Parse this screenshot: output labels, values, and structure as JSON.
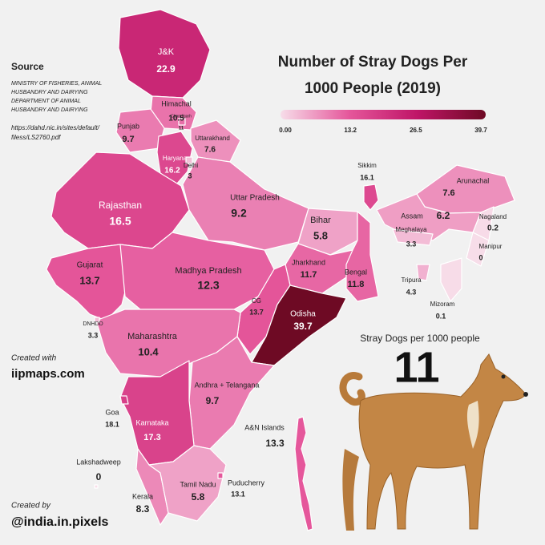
{
  "title": [
    "Number of Stray Dogs Per",
    "1000 People (2019)"
  ],
  "color_scale": {
    "min": 0,
    "max": 39.7,
    "ticks": [
      {
        "value": 0,
        "label": "0.00"
      },
      13.2,
      26.5,
      39.7
    ],
    "colors": [
      "#f7dde9",
      "#e5579b",
      "#bf1567",
      "#6e0a24"
    ]
  },
  "source": {
    "heading": "Source",
    "lines": [
      "MINISTRY OF FISHERIES, ANIMAL",
      "HUSBANDRY AND DAIRYING",
      "DEPARTMENT OF ANIMAL",
      "HUSBANDRY AND DAIRYING"
    ],
    "url": [
      "https://dahd.nic.in/sites/default/",
      "filess/LS2760.pdf"
    ]
  },
  "regions": [
    {
      "name": "J&K",
      "value": 22.9
    },
    {
      "name": "Himachal",
      "value": 10.5
    },
    {
      "name": "Punjab",
      "value": 9.7
    },
    {
      "name": "Chandigarh",
      "value": 11
    },
    {
      "name": "Uttarakhand",
      "value": 7.6
    },
    {
      "name": "Haryana",
      "value": 16.2
    },
    {
      "name": "Delhi",
      "value": 3
    },
    {
      "name": "Rajasthan",
      "value": 16.5
    },
    {
      "name": "Uttar Pradesh",
      "value": 9.2
    },
    {
      "name": "Bihar",
      "value": 5.8
    },
    {
      "name": "Gujarat",
      "value": 13.7
    },
    {
      "name": "Madhya Pradesh",
      "value": 12.3
    },
    {
      "name": "Jharkhand",
      "value": 11.7
    },
    {
      "name": "Bengal",
      "value": 11.8
    },
    {
      "name": "CG",
      "value": 13.7
    },
    {
      "name": "Odisha",
      "value": 39.7
    },
    {
      "name": "Maharashtra",
      "value": 10.4
    },
    {
      "name": "Andhra + Telangana",
      "value": 9.7
    },
    {
      "name": "Karnataka",
      "value": 17.3
    },
    {
      "name": "Goa",
      "value": 18.1
    },
    {
      "name": "Kerala",
      "value": 8.3
    },
    {
      "name": "Tamil Nadu",
      "value": 5.8
    },
    {
      "name": "Puducherry",
      "value": 13.1
    },
    {
      "name": "A&N Islands",
      "value": 13.3
    },
    {
      "name": "Lakshadweep",
      "value": 0
    },
    {
      "name": "DNHDD",
      "value": 3.3
    },
    {
      "name": "Sikkim",
      "value": 16.1
    },
    {
      "name": "Arunachal",
      "value": 7.6
    },
    {
      "name": "Assam",
      "value": 6.2
    },
    {
      "name": "Nagaland",
      "value": 0.2
    },
    {
      "name": "Meghalaya",
      "value": 3.3
    },
    {
      "name": "Manipur",
      "value": 0
    },
    {
      "name": "Tripura",
      "value": 4.3
    },
    {
      "name": "Mizoram",
      "value": 0.1
    }
  ],
  "national": {
    "label": "Stray Dogs per 1000 people",
    "value": 11
  },
  "credits": {
    "made_with_label": "Created with",
    "made_with": "iipmaps.com",
    "made_by_label": "Created by",
    "made_by": "@india.in.pixels"
  }
}
